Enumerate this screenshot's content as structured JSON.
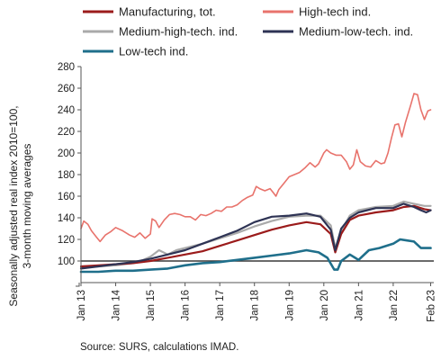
{
  "chart_data": {
    "type": "line",
    "ylabel_lines": [
      "Seasonally adjusted real  index 2010=100,",
      "3-month moving averages"
    ],
    "source": "Source: SURS, calculations IMAD.",
    "ylim": [
      80,
      280
    ],
    "yticks": [
      100,
      120,
      140,
      160,
      180,
      200,
      220,
      240,
      260,
      280
    ],
    "xlim": [
      2013.0,
      2023.17
    ],
    "xticks": [
      {
        "label": "Jan 13",
        "x": 2013.0
      },
      {
        "label": "Jan 14",
        "x": 2014.0
      },
      {
        "label": "Jan 15",
        "x": 2015.0
      },
      {
        "label": "Jan 16",
        "x": 2016.0
      },
      {
        "label": "Jan 17",
        "x": 2017.0
      },
      {
        "label": "Jan 18",
        "x": 2018.0
      },
      {
        "label": "Jan 19",
        "x": 2019.0
      },
      {
        "label": "Jan 20",
        "x": 2020.0
      },
      {
        "label": "Jan 21",
        "x": 2021.0
      },
      {
        "label": "Jan 22",
        "x": 2022.0
      },
      {
        "label": "Feb 23",
        "x": 2023.08
      }
    ],
    "reference_line": 100,
    "grid": false,
    "legend_placement": "top",
    "series": [
      {
        "name": "Manufacturing, tot.",
        "color": "#9b1b1b",
        "width": 2.2,
        "points": [
          [
            2013.0,
            95
          ],
          [
            2013.5,
            96
          ],
          [
            2014.0,
            97
          ],
          [
            2014.5,
            98
          ],
          [
            2015.0,
            100
          ],
          [
            2015.5,
            103
          ],
          [
            2016.0,
            106
          ],
          [
            2016.5,
            109
          ],
          [
            2017.0,
            114
          ],
          [
            2017.5,
            119
          ],
          [
            2018.0,
            124
          ],
          [
            2018.5,
            129
          ],
          [
            2019.0,
            133
          ],
          [
            2019.5,
            136
          ],
          [
            2019.9,
            134
          ],
          [
            2020.2,
            125
          ],
          [
            2020.33,
            108
          ],
          [
            2020.5,
            125
          ],
          [
            2020.75,
            138
          ],
          [
            2021.0,
            142
          ],
          [
            2021.5,
            145
          ],
          [
            2022.0,
            147
          ],
          [
            2022.3,
            150
          ],
          [
            2022.6,
            151
          ],
          [
            2022.9,
            148
          ],
          [
            2023.08,
            147
          ]
        ]
      },
      {
        "name": "High-tech ind.",
        "color": "#e8736c",
        "width": 1.6,
        "points": [
          [
            2013.0,
            130
          ],
          [
            2013.08,
            137
          ],
          [
            2013.2,
            134
          ],
          [
            2013.3,
            128
          ],
          [
            2013.45,
            122
          ],
          [
            2013.55,
            118
          ],
          [
            2013.7,
            124
          ],
          [
            2013.85,
            127
          ],
          [
            2014.0,
            131
          ],
          [
            2014.2,
            128
          ],
          [
            2014.4,
            124
          ],
          [
            2014.55,
            122
          ],
          [
            2014.7,
            126
          ],
          [
            2014.85,
            121
          ],
          [
            2015.0,
            125
          ],
          [
            2015.05,
            139
          ],
          [
            2015.15,
            137
          ],
          [
            2015.25,
            131
          ],
          [
            2015.4,
            138
          ],
          [
            2015.55,
            143
          ],
          [
            2015.7,
            144
          ],
          [
            2015.85,
            143
          ],
          [
            2016.0,
            141
          ],
          [
            2016.15,
            141
          ],
          [
            2016.3,
            138
          ],
          [
            2016.45,
            143
          ],
          [
            2016.6,
            142
          ],
          [
            2016.75,
            144
          ],
          [
            2016.9,
            147
          ],
          [
            2017.05,
            146
          ],
          [
            2017.2,
            150
          ],
          [
            2017.35,
            150
          ],
          [
            2017.5,
            152
          ],
          [
            2017.65,
            156
          ],
          [
            2017.8,
            159
          ],
          [
            2017.95,
            161
          ],
          [
            2018.05,
            169
          ],
          [
            2018.15,
            167
          ],
          [
            2018.3,
            165
          ],
          [
            2018.45,
            167
          ],
          [
            2018.55,
            163
          ],
          [
            2018.62,
            160
          ],
          [
            2018.7,
            166
          ],
          [
            2018.85,
            172
          ],
          [
            2019.0,
            178
          ],
          [
            2019.15,
            180
          ],
          [
            2019.3,
            182
          ],
          [
            2019.45,
            186
          ],
          [
            2019.6,
            191
          ],
          [
            2019.75,
            187
          ],
          [
            2019.85,
            190
          ],
          [
            2020.0,
            200
          ],
          [
            2020.08,
            203
          ],
          [
            2020.2,
            200
          ],
          [
            2020.35,
            198
          ],
          [
            2020.5,
            198
          ],
          [
            2020.65,
            192
          ],
          [
            2020.75,
            185
          ],
          [
            2020.85,
            189
          ],
          [
            2020.95,
            203
          ],
          [
            2021.05,
            192
          ],
          [
            2021.2,
            188
          ],
          [
            2021.35,
            187
          ],
          [
            2021.5,
            193
          ],
          [
            2021.65,
            190
          ],
          [
            2021.75,
            191
          ],
          [
            2021.85,
            200
          ],
          [
            2021.95,
            214
          ],
          [
            2022.05,
            226
          ],
          [
            2022.15,
            227
          ],
          [
            2022.25,
            215
          ],
          [
            2022.35,
            228
          ],
          [
            2022.5,
            244
          ],
          [
            2022.6,
            255
          ],
          [
            2022.7,
            254
          ],
          [
            2022.8,
            240
          ],
          [
            2022.9,
            231
          ],
          [
            2023.0,
            239
          ],
          [
            2023.08,
            240
          ]
        ]
      },
      {
        "name": "Medium-high-tech. ind.",
        "color": "#aaaaaa",
        "width": 2.2,
        "points": [
          [
            2013.0,
            94
          ],
          [
            2013.5,
            95
          ],
          [
            2014.0,
            96
          ],
          [
            2014.5,
            98
          ],
          [
            2014.8,
            101
          ],
          [
            2015.0,
            104
          ],
          [
            2015.25,
            110
          ],
          [
            2015.5,
            106
          ],
          [
            2015.75,
            110
          ],
          [
            2016.0,
            112
          ],
          [
            2016.5,
            116
          ],
          [
            2017.0,
            121
          ],
          [
            2017.5,
            126
          ],
          [
            2018.0,
            132
          ],
          [
            2018.5,
            137
          ],
          [
            2019.0,
            141
          ],
          [
            2019.5,
            142
          ],
          [
            2019.9,
            142
          ],
          [
            2020.2,
            133
          ],
          [
            2020.33,
            112
          ],
          [
            2020.5,
            128
          ],
          [
            2020.75,
            142
          ],
          [
            2021.0,
            147
          ],
          [
            2021.5,
            150
          ],
          [
            2022.0,
            151
          ],
          [
            2022.3,
            155
          ],
          [
            2022.6,
            153
          ],
          [
            2022.9,
            151
          ],
          [
            2023.08,
            151
          ]
        ]
      },
      {
        "name": "Medium-low-tech. ind.",
        "color": "#2e3354",
        "width": 2.2,
        "points": [
          [
            2013.0,
            93
          ],
          [
            2013.5,
            95
          ],
          [
            2014.0,
            97
          ],
          [
            2014.5,
            99
          ],
          [
            2015.0,
            102
          ],
          [
            2015.5,
            106
          ],
          [
            2016.0,
            110
          ],
          [
            2016.5,
            116
          ],
          [
            2017.0,
            122
          ],
          [
            2017.5,
            128
          ],
          [
            2018.0,
            136
          ],
          [
            2018.5,
            141
          ],
          [
            2019.0,
            142
          ],
          [
            2019.5,
            144
          ],
          [
            2019.9,
            141
          ],
          [
            2020.2,
            129
          ],
          [
            2020.33,
            110
          ],
          [
            2020.5,
            130
          ],
          [
            2020.75,
            140
          ],
          [
            2021.0,
            145
          ],
          [
            2021.5,
            149
          ],
          [
            2022.0,
            149
          ],
          [
            2022.3,
            153
          ],
          [
            2022.6,
            150
          ],
          [
            2022.8,
            147
          ],
          [
            2022.95,
            145
          ],
          [
            2023.08,
            147
          ]
        ]
      },
      {
        "name": "Low-tech ind.",
        "color": "#1f6f8b",
        "width": 2.6,
        "points": [
          [
            2013.0,
            90
          ],
          [
            2013.5,
            90
          ],
          [
            2014.0,
            91
          ],
          [
            2014.5,
            91
          ],
          [
            2015.0,
            92
          ],
          [
            2015.5,
            93
          ],
          [
            2016.0,
            96
          ],
          [
            2016.5,
            98
          ],
          [
            2017.0,
            99
          ],
          [
            2017.5,
            101
          ],
          [
            2018.0,
            103
          ],
          [
            2018.5,
            105
          ],
          [
            2019.0,
            107
          ],
          [
            2019.5,
            110
          ],
          [
            2019.85,
            108
          ],
          [
            2020.1,
            103
          ],
          [
            2020.3,
            92
          ],
          [
            2020.4,
            92
          ],
          [
            2020.5,
            100
          ],
          [
            2020.75,
            106
          ],
          [
            2020.9,
            103
          ],
          [
            2021.0,
            101
          ],
          [
            2021.3,
            110
          ],
          [
            2021.6,
            112
          ],
          [
            2022.0,
            116
          ],
          [
            2022.2,
            120
          ],
          [
            2022.4,
            119
          ],
          [
            2022.6,
            118
          ],
          [
            2022.8,
            112
          ],
          [
            2023.08,
            112
          ]
        ]
      }
    ]
  }
}
